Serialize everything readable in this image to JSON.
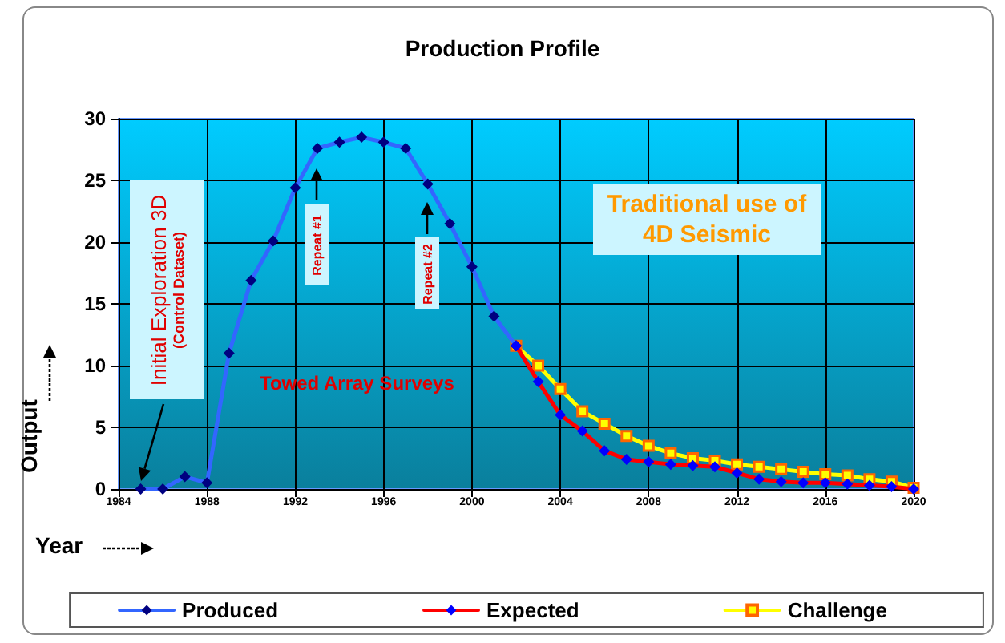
{
  "chart_data": {
    "type": "line",
    "title": "Production Profile",
    "xlabel": "Year",
    "ylabel": "Output",
    "xlim": [
      1984,
      2020
    ],
    "xticks": [
      1984,
      1988,
      1992,
      1996,
      2000,
      2004,
      2008,
      2012,
      2016,
      2020
    ],
    "ylim": [
      0,
      30
    ],
    "yticks": [
      0,
      5,
      10,
      15,
      20,
      25,
      30
    ],
    "grid": true,
    "legend": "bottom",
    "line_style": "solid",
    "series": [
      {
        "name": "Produced",
        "color": "#3366ff",
        "marker": "diamond",
        "x": [
          1985,
          1986,
          1987,
          1988,
          1989,
          1990,
          1991,
          1992,
          1993,
          1994,
          1995,
          1996,
          1997,
          1998,
          1999,
          2000,
          2001,
          2002
        ],
        "values": [
          0,
          0,
          1,
          0.5,
          11,
          16.9,
          20.1,
          24.4,
          27.6,
          28.1,
          28.5,
          28.1,
          27.6,
          24.7,
          21.5,
          18,
          14,
          11.6
        ]
      },
      {
        "name": "Expected",
        "color": "#ff0000",
        "marker": "diamond",
        "x": [
          2002,
          2003,
          2004,
          2005,
          2006,
          2007,
          2008,
          2009,
          2010,
          2011,
          2012,
          2013,
          2014,
          2015,
          2016,
          2017,
          2018,
          2019,
          2020
        ],
        "values": [
          11.6,
          8.7,
          6,
          4.7,
          3.1,
          2.4,
          2.2,
          2,
          1.9,
          1.8,
          1.3,
          0.8,
          0.6,
          0.5,
          0.5,
          0.4,
          0.3,
          0.2,
          0
        ]
      },
      {
        "name": "Challenge",
        "color": "#ffff00",
        "marker": "square",
        "x": [
          2002,
          2003,
          2004,
          2005,
          2006,
          2007,
          2008,
          2009,
          2010,
          2011,
          2012,
          2013,
          2014,
          2015,
          2016,
          2017,
          2018,
          2019,
          2020
        ],
        "values": [
          11.6,
          10,
          8.1,
          6.3,
          5.3,
          4.3,
          3.5,
          2.9,
          2.5,
          2.3,
          2,
          1.8,
          1.6,
          1.4,
          1.2,
          1.1,
          0.8,
          0.6,
          0.1
        ]
      }
    ],
    "annotations": [
      "Initial Exploration 3D",
      "(Control Dataset)",
      "Repeat #1",
      "Repeat #2",
      "Towed Array Surveys",
      "Traditional use of 4D Seismic"
    ]
  }
}
